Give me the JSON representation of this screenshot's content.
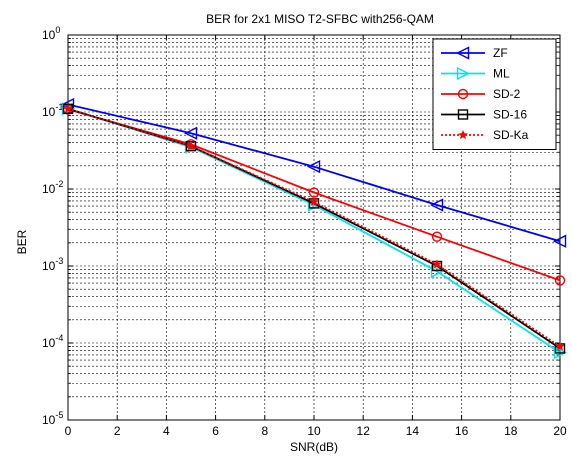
{
  "chart_data": {
    "type": "line",
    "title": "BER for 2x1 MISO T2-SFBC with256-QAM",
    "xlabel": "SNR(dB)",
    "ylabel": "BER",
    "xlim": [
      0,
      20
    ],
    "ylim": [
      1e-05,
      1
    ],
    "yscale": "log",
    "grid": true,
    "legend_position": "top-right",
    "x_ticks": [
      "0",
      "2",
      "4",
      "6",
      "8",
      "10",
      "12",
      "14",
      "16",
      "18",
      "20"
    ],
    "y_ticks": [
      {
        "base": "10",
        "exp": "0",
        "value": 1
      },
      {
        "base": "10",
        "exp": "-1",
        "value": 0.1
      },
      {
        "base": "10",
        "exp": "-2",
        "value": 0.01
      },
      {
        "base": "10",
        "exp": "-3",
        "value": 0.001
      },
      {
        "base": "10",
        "exp": "-4",
        "value": 0.0001
      },
      {
        "base": "10",
        "exp": "-5",
        "value": 1e-05
      }
    ],
    "x": [
      0,
      5,
      10,
      15,
      20
    ],
    "series": [
      {
        "name": "ZF",
        "color": "#0000ff",
        "marker": "triangle-left",
        "dash": "solid",
        "values": [
          0.125,
          0.053,
          0.0195,
          0.0062,
          0.0021
        ]
      },
      {
        "name": "ML",
        "color": "#00e5ee",
        "marker": "triangle-right",
        "dash": "solid",
        "values": [
          0.11,
          0.035,
          0.0062,
          0.00085,
          7.5e-05
        ]
      },
      {
        "name": "SD-2",
        "color": "#ff0000",
        "marker": "circle",
        "dash": "solid",
        "values": [
          0.108,
          0.038,
          0.009,
          0.0024,
          0.00065
        ]
      },
      {
        "name": "SD-16",
        "color": "#000000",
        "marker": "square",
        "dash": "solid",
        "values": [
          0.11,
          0.036,
          0.0065,
          0.001,
          8.5e-05
        ]
      },
      {
        "name": "SD-Ka",
        "color": "#ff0000",
        "marker": "star",
        "dash": "dotted",
        "values": [
          0.11,
          0.036,
          0.0068,
          0.00105,
          9e-05
        ]
      }
    ]
  }
}
